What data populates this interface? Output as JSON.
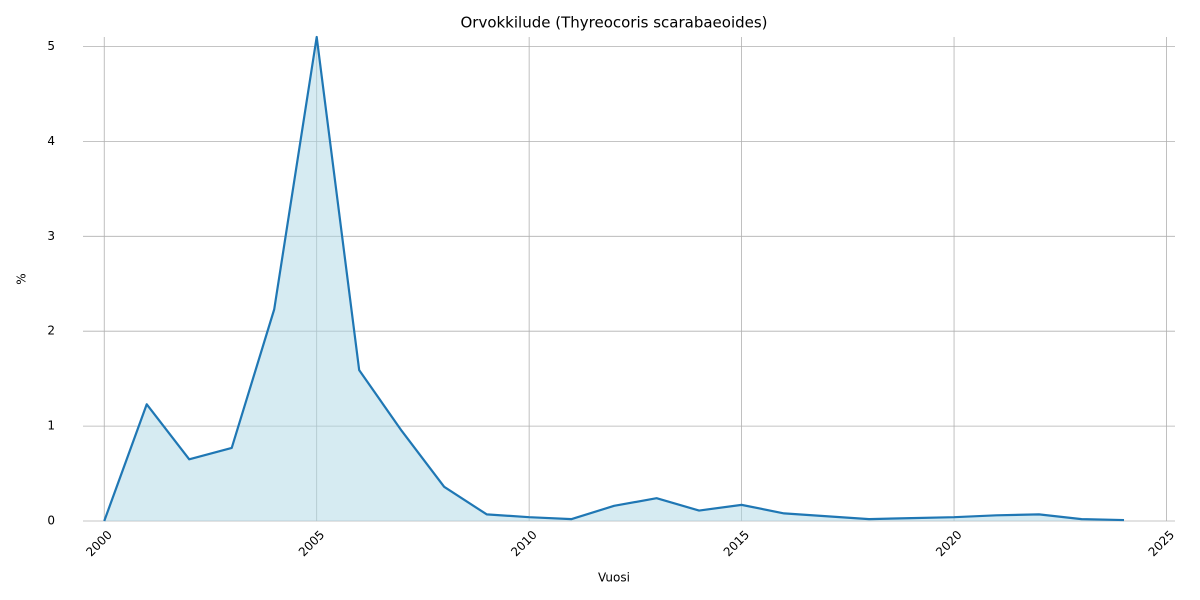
{
  "chart_data": {
    "type": "area",
    "title": "Orvokkilude (Thyreocoris scarabaeoides)",
    "xlabel": "Vuosi",
    "ylabel": "%",
    "x": [
      2000,
      2001,
      2002,
      2003,
      2004,
      2005,
      2006,
      2007,
      2008,
      2009,
      2010,
      2011,
      2012,
      2013,
      2014,
      2015,
      2016,
      2017,
      2018,
      2019,
      2020,
      2021,
      2022,
      2023,
      2024
    ],
    "values": [
      0,
      1.23,
      0.65,
      0.77,
      2.23,
      5.1,
      1.59,
      0.95,
      0.36,
      0.07,
      0.04,
      0.02,
      0.16,
      0.24,
      0.11,
      0.17,
      0.08,
      0.05,
      0.02,
      0.03,
      0.04,
      0.06,
      0.07,
      0.02,
      0.01
    ],
    "color": "#1f77b4",
    "fill_color": "#add8e6",
    "xlim": [
      1999.5,
      2025.2
    ],
    "ylim": [
      0,
      5.1
    ],
    "xticks": [
      2000,
      2005,
      2010,
      2015,
      2020,
      2025
    ],
    "yticks": [
      0,
      1,
      2,
      3,
      4,
      5
    ],
    "grid": true
  }
}
